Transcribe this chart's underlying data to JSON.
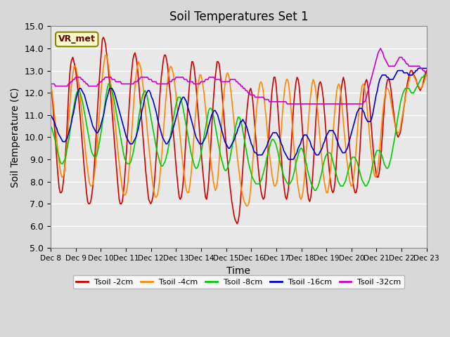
{
  "title": "Soil Temperatures Set 1",
  "xlabel": "Time",
  "ylabel": "Soil Temperature (C)",
  "ylim": [
    5.0,
    15.0
  ],
  "yticks": [
    5.0,
    6.0,
    7.0,
    8.0,
    9.0,
    10.0,
    11.0,
    12.0,
    13.0,
    14.0,
    15.0
  ],
  "x_labels": [
    "Dec 8",
    "Dec 9",
    "Dec 10",
    "Dec 11",
    "Dec 12",
    "Dec 13",
    "Dec 14",
    "Dec 15",
    "Dec 16",
    "Dec 17",
    "Dec 18",
    "Dec 19",
    "Dec 20",
    "Dec 21",
    "Dec 22",
    "Dec 23"
  ],
  "series_colors": [
    "#cc0000",
    "#ff8800",
    "#00cc00",
    "#0000cc",
    "#cc00cc"
  ],
  "series_labels": [
    "Tsoil -2cm",
    "Tsoil -4cm",
    "Tsoil -8cm",
    "Tsoil -16cm",
    "Tsoil -32cm"
  ],
  "plot_background": "#e8e8e8",
  "grid_color": "#ffffff",
  "t2cm": [
    12.4,
    12.0,
    11.5,
    10.8,
    10.2,
    9.5,
    8.8,
    8.2,
    7.7,
    7.5,
    7.5,
    7.6,
    8.0,
    8.5,
    9.2,
    10.0,
    11.0,
    12.0,
    12.8,
    13.3,
    13.5,
    13.6,
    13.4,
    13.2,
    12.9,
    12.5,
    12.0,
    11.5,
    10.9,
    10.3,
    9.7,
    9.1,
    8.5,
    8.0,
    7.5,
    7.1,
    7.0,
    7.0,
    7.1,
    7.4,
    7.8,
    8.4,
    9.2,
    10.0,
    10.9,
    11.7,
    12.5,
    13.2,
    13.8,
    14.4,
    14.5,
    14.4,
    14.2,
    13.8,
    13.4,
    12.9,
    12.4,
    11.9,
    11.3,
    10.7,
    10.1,
    9.5,
    8.9,
    8.3,
    7.7,
    7.2,
    7.0,
    7.0,
    7.1,
    7.5,
    8.0,
    8.7,
    9.4,
    10.2,
    11.0,
    11.8,
    12.5,
    13.0,
    13.5,
    13.7,
    13.8,
    13.6,
    13.3,
    12.8,
    12.2,
    11.6,
    11.0,
    10.4,
    9.8,
    9.2,
    8.6,
    8.1,
    7.6,
    7.2,
    7.1,
    7.0,
    7.1,
    7.3,
    7.7,
    8.3,
    9.0,
    9.8,
    10.6,
    11.4,
    12.1,
    12.7,
    13.1,
    13.5,
    13.7,
    13.7,
    13.5,
    13.2,
    12.7,
    12.2,
    11.7,
    11.1,
    10.5,
    9.9,
    9.3,
    8.7,
    8.2,
    7.7,
    7.3,
    7.2,
    7.3,
    7.6,
    8.1,
    8.8,
    9.6,
    10.4,
    11.2,
    11.9,
    12.5,
    13.0,
    13.4,
    13.4,
    13.2,
    12.8,
    12.3,
    11.7,
    11.1,
    10.5,
    9.9,
    9.3,
    8.7,
    8.2,
    7.7,
    7.3,
    7.2,
    7.5,
    8.0,
    8.8,
    9.6,
    10.5,
    11.3,
    12.0,
    12.6,
    13.0,
    13.4,
    13.4,
    13.3,
    12.9,
    12.4,
    11.8,
    11.2,
    10.6,
    10.0,
    9.4,
    8.9,
    8.4,
    7.9,
    7.5,
    7.1,
    6.8,
    6.5,
    6.3,
    6.2,
    6.1,
    6.2,
    6.5,
    7.0,
    7.6,
    8.3,
    9.0,
    9.7,
    10.4,
    11.0,
    11.5,
    11.9,
    12.1,
    12.2,
    12.0,
    11.6,
    11.0,
    10.4,
    9.8,
    9.2,
    8.7,
    8.2,
    7.8,
    7.5,
    7.3,
    7.2,
    7.3,
    7.7,
    8.3,
    9.1,
    9.9,
    10.7,
    11.4,
    12.0,
    12.4,
    12.7,
    12.7,
    12.4,
    11.8,
    11.1,
    10.4,
    9.7,
    9.1,
    8.5,
    8.0,
    7.6,
    7.3,
    7.2,
    7.4,
    7.8,
    8.5,
    9.3,
    10.1,
    10.9,
    11.6,
    12.1,
    12.5,
    12.7,
    12.6,
    12.3,
    11.7,
    11.1,
    10.4,
    9.7,
    9.1,
    8.5,
    8.0,
    7.5,
    7.2,
    7.1,
    7.3,
    7.7,
    8.4,
    9.2,
    10.1,
    10.9,
    11.6,
    12.1,
    12.4,
    12.5,
    12.4,
    12.1,
    11.7,
    11.1,
    10.5,
    9.9,
    9.3,
    8.8,
    8.3,
    7.9,
    7.6,
    7.5,
    7.6,
    8.0,
    8.6,
    9.4,
    10.2,
    11.0,
    11.7,
    12.2,
    12.5,
    12.7,
    12.5,
    12.1,
    11.5,
    10.8,
    10.1,
    9.5,
    8.9,
    8.4,
    8.0,
    7.7,
    7.5,
    7.5,
    7.7,
    8.2,
    8.9,
    9.7,
    10.6,
    11.3,
    11.9,
    12.3,
    12.5,
    12.6,
    12.4,
    12.0,
    11.4,
    10.8,
    10.2,
    9.6,
    9.1,
    8.7,
    8.4,
    8.2,
    8.2,
    8.4,
    8.8,
    9.4,
    10.1,
    10.8,
    11.5,
    12.0,
    12.4,
    12.6,
    12.6,
    12.5,
    12.2,
    11.8,
    11.4,
    11.0,
    10.6,
    10.3,
    10.1,
    10.0,
    10.1,
    10.2,
    10.5,
    10.8,
    11.2,
    11.5,
    11.9,
    12.2,
    12.5,
    12.7,
    12.9,
    13.0,
    13.0,
    12.9,
    12.8,
    12.7,
    12.6,
    12.4,
    12.3,
    12.2,
    12.1,
    12.2,
    12.3,
    12.5,
    12.7,
    12.9,
    13.0
  ],
  "t4cm": [
    12.4,
    12.1,
    11.7,
    11.2,
    10.7,
    10.1,
    9.6,
    9.1,
    8.7,
    8.4,
    8.2,
    8.2,
    8.4,
    8.8,
    9.3,
    9.9,
    10.6,
    11.3,
    12.0,
    12.5,
    12.9,
    13.2,
    13.2,
    13.1,
    12.8,
    12.5,
    12.1,
    11.6,
    11.1,
    10.6,
    10.0,
    9.5,
    9.0,
    8.6,
    8.2,
    7.9,
    7.8,
    7.8,
    7.9,
    8.2,
    8.6,
    9.2,
    9.8,
    10.5,
    11.2,
    11.9,
    12.5,
    13.0,
    13.4,
    13.7,
    13.7,
    13.5,
    13.2,
    12.8,
    12.4,
    12.0,
    11.5,
    11.1,
    10.6,
    10.1,
    9.6,
    9.1,
    8.6,
    8.2,
    7.8,
    7.5,
    7.4,
    7.4,
    7.5,
    7.8,
    8.3,
    8.9,
    9.6,
    10.3,
    11.1,
    11.8,
    12.4,
    12.9,
    13.2,
    13.4,
    13.3,
    13.1,
    12.7,
    12.3,
    11.8,
    11.3,
    10.8,
    10.2,
    9.7,
    9.2,
    8.7,
    8.2,
    7.8,
    7.5,
    7.3,
    7.3,
    7.4,
    7.7,
    8.1,
    8.7,
    9.3,
    10.0,
    10.7,
    11.4,
    12.0,
    12.5,
    12.9,
    13.1,
    13.2,
    13.1,
    12.9,
    12.6,
    12.2,
    11.7,
    11.2,
    10.7,
    10.2,
    9.7,
    9.2,
    8.7,
    8.3,
    7.9,
    7.6,
    7.5,
    7.5,
    7.8,
    8.2,
    8.8,
    9.5,
    10.2,
    10.9,
    11.5,
    12.1,
    12.5,
    12.8,
    12.8,
    12.6,
    12.3,
    11.9,
    11.4,
    10.9,
    10.4,
    9.9,
    9.4,
    8.9,
    8.5,
    8.1,
    7.8,
    7.6,
    7.7,
    8.0,
    8.6,
    9.3,
    10.1,
    10.8,
    11.5,
    12.1,
    12.5,
    12.8,
    12.9,
    12.8,
    12.5,
    12.1,
    11.6,
    11.1,
    10.6,
    10.0,
    9.5,
    9.0,
    8.6,
    8.2,
    7.8,
    7.5,
    7.3,
    7.1,
    7.0,
    6.9,
    6.9,
    7.0,
    7.3,
    7.8,
    8.4,
    9.1,
    9.8,
    10.5,
    11.2,
    11.7,
    12.1,
    12.4,
    12.5,
    12.4,
    12.1,
    11.7,
    11.2,
    10.7,
    10.1,
    9.6,
    9.1,
    8.7,
    8.3,
    8.0,
    7.8,
    7.8,
    7.9,
    8.2,
    8.7,
    9.4,
    10.1,
    10.8,
    11.5,
    12.0,
    12.4,
    12.6,
    12.6,
    12.4,
    11.9,
    11.3,
    10.7,
    10.0,
    9.4,
    8.9,
    8.4,
    7.9,
    7.6,
    7.3,
    7.2,
    7.3,
    7.6,
    8.1,
    8.8,
    9.5,
    10.2,
    10.9,
    11.5,
    12.0,
    12.4,
    12.6,
    12.5,
    12.2,
    11.8,
    11.2,
    10.6,
    10.0,
    9.4,
    8.9,
    8.4,
    8.0,
    7.7,
    7.5,
    7.5,
    7.8,
    8.2,
    8.8,
    9.5,
    10.2,
    10.9,
    11.5,
    12.0,
    12.3,
    12.4,
    12.3,
    11.9,
    11.4,
    10.8,
    10.2,
    9.7,
    9.1,
    8.7,
    8.3,
    8.0,
    7.8,
    7.8,
    8.0,
    8.4,
    9.0,
    9.7,
    10.4,
    11.1,
    11.6,
    12.0,
    12.3,
    12.4,
    12.3,
    12.0,
    11.6,
    11.0,
    10.5,
    9.9,
    9.4,
    9.0,
    8.6,
    8.3,
    8.2,
    8.3,
    8.5,
    9.0,
    9.5,
    10.2,
    10.8,
    11.3,
    11.7,
    12.0,
    12.2,
    12.2,
    12.1,
    11.9,
    11.6,
    11.3,
    11.0,
    10.7,
    10.5,
    10.3,
    10.2,
    10.2,
    10.3,
    10.6,
    10.9,
    11.2,
    11.5,
    11.8,
    12.1,
    12.3,
    12.5,
    12.7,
    12.8,
    12.8,
    12.8,
    12.7,
    12.6,
    12.5,
    12.4,
    12.3,
    12.2,
    12.2,
    12.3,
    12.4,
    12.5,
    12.7,
    12.8
  ],
  "t8cm": [
    10.5,
    10.4,
    10.2,
    10.0,
    9.8,
    9.5,
    9.3,
    9.1,
    8.9,
    8.8,
    8.8,
    8.9,
    9.0,
    9.2,
    9.5,
    9.8,
    10.1,
    10.5,
    10.9,
    11.2,
    11.5,
    11.8,
    12.0,
    12.1,
    12.1,
    12.0,
    11.8,
    11.6,
    11.3,
    11.0,
    10.7,
    10.4,
    10.1,
    9.8,
    9.5,
    9.3,
    9.2,
    9.1,
    9.1,
    9.2,
    9.4,
    9.7,
    10.0,
    10.3,
    10.7,
    11.1,
    11.5,
    11.9,
    12.2,
    12.4,
    12.4,
    12.3,
    12.1,
    11.9,
    11.6,
    11.3,
    11.0,
    10.7,
    10.4,
    10.1,
    9.8,
    9.5,
    9.2,
    9.0,
    8.9,
    8.8,
    8.8,
    8.8,
    8.9,
    9.1,
    9.3,
    9.6,
    9.9,
    10.2,
    10.6,
    11.0,
    11.3,
    11.6,
    11.9,
    12.0,
    12.1,
    12.0,
    11.8,
    11.5,
    11.2,
    10.9,
    10.6,
    10.3,
    10.0,
    9.7,
    9.4,
    9.2,
    9.0,
    8.8,
    8.7,
    8.7,
    8.8,
    8.9,
    9.1,
    9.3,
    9.6,
    9.9,
    10.2,
    10.5,
    10.8,
    11.1,
    11.4,
    11.6,
    11.8,
    11.8,
    11.8,
    11.6,
    11.4,
    11.1,
    10.8,
    10.5,
    10.2,
    9.9,
    9.6,
    9.3,
    9.1,
    8.9,
    8.7,
    8.6,
    8.6,
    8.7,
    8.9,
    9.1,
    9.4,
    9.7,
    10.0,
    10.3,
    10.6,
    10.9,
    11.2,
    11.3,
    11.3,
    11.2,
    11.0,
    10.7,
    10.4,
    10.1,
    9.8,
    9.5,
    9.2,
    9.0,
    8.8,
    8.6,
    8.5,
    8.5,
    8.6,
    8.8,
    9.0,
    9.3,
    9.6,
    9.9,
    10.2,
    10.5,
    10.7,
    10.9,
    10.9,
    10.8,
    10.6,
    10.3,
    10.0,
    9.7,
    9.4,
    9.1,
    8.8,
    8.6,
    8.4,
    8.2,
    8.1,
    8.0,
    7.9,
    7.9,
    7.9,
    7.9,
    8.0,
    8.1,
    8.3,
    8.5,
    8.7,
    9.0,
    9.2,
    9.4,
    9.6,
    9.8,
    9.9,
    9.9,
    9.8,
    9.7,
    9.5,
    9.3,
    9.0,
    8.8,
    8.6,
    8.4,
    8.2,
    8.1,
    8.0,
    7.9,
    7.9,
    7.9,
    8.0,
    8.1,
    8.3,
    8.5,
    8.8,
    9.0,
    9.2,
    9.4,
    9.5,
    9.5,
    9.4,
    9.2,
    9.0,
    8.8,
    8.5,
    8.3,
    8.1,
    7.9,
    7.8,
    7.7,
    7.6,
    7.6,
    7.7,
    7.8,
    8.0,
    8.2,
    8.4,
    8.7,
    8.9,
    9.1,
    9.2,
    9.3,
    9.3,
    9.3,
    9.2,
    9.0,
    8.8,
    8.6,
    8.4,
    8.2,
    8.0,
    7.9,
    7.8,
    7.8,
    7.8,
    7.9,
    8.0,
    8.2,
    8.4,
    8.6,
    8.8,
    9.0,
    9.1,
    9.1,
    9.1,
    9.0,
    8.9,
    8.7,
    8.5,
    8.3,
    8.1,
    8.0,
    7.9,
    7.8,
    7.8,
    7.9,
    8.0,
    8.2,
    8.4,
    8.7,
    8.9,
    9.1,
    9.3,
    9.4,
    9.4,
    9.4,
    9.3,
    9.2,
    9.0,
    8.8,
    8.7,
    8.6,
    8.6,
    8.7,
    8.9,
    9.1,
    9.4,
    9.7,
    10.0,
    10.3,
    10.7,
    11.0,
    11.3,
    11.6,
    11.8,
    12.0,
    12.1,
    12.2,
    12.2,
    12.2,
    12.2,
    12.1,
    12.0,
    12.0,
    12.0,
    12.1,
    12.2,
    12.3,
    12.4,
    12.5,
    12.6,
    12.7,
    12.7,
    12.8,
    12.8,
    12.9
  ],
  "t16cm": [
    11.0,
    10.9,
    10.8,
    10.7,
    10.5,
    10.4,
    10.2,
    10.1,
    10.0,
    9.9,
    9.8,
    9.8,
    9.8,
    9.9,
    10.0,
    10.2,
    10.4,
    10.6,
    10.9,
    11.1,
    11.4,
    11.7,
    11.9,
    12.1,
    12.2,
    12.2,
    12.1,
    12.0,
    11.9,
    11.7,
    11.5,
    11.3,
    11.1,
    10.9,
    10.7,
    10.5,
    10.4,
    10.3,
    10.2,
    10.2,
    10.3,
    10.4,
    10.6,
    10.8,
    11.0,
    11.3,
    11.6,
    11.8,
    12.0,
    12.2,
    12.2,
    12.2,
    12.1,
    12.0,
    11.8,
    11.6,
    11.4,
    11.2,
    11.0,
    10.8,
    10.6,
    10.4,
    10.2,
    10.0,
    9.9,
    9.8,
    9.7,
    9.7,
    9.7,
    9.8,
    9.9,
    10.0,
    10.2,
    10.4,
    10.7,
    10.9,
    11.2,
    11.4,
    11.7,
    11.9,
    12.0,
    12.1,
    12.1,
    12.0,
    11.8,
    11.7,
    11.5,
    11.3,
    11.1,
    10.8,
    10.6,
    10.4,
    10.2,
    10.0,
    9.9,
    9.8,
    9.7,
    9.7,
    9.8,
    9.9,
    10.0,
    10.2,
    10.4,
    10.6,
    10.8,
    11.0,
    11.2,
    11.4,
    11.6,
    11.7,
    11.8,
    11.8,
    11.7,
    11.6,
    11.4,
    11.2,
    11.0,
    10.8,
    10.6,
    10.4,
    10.2,
    10.0,
    9.9,
    9.8,
    9.7,
    9.7,
    9.7,
    9.8,
    9.9,
    10.0,
    10.2,
    10.4,
    10.6,
    10.8,
    11.0,
    11.1,
    11.2,
    11.2,
    11.1,
    11.0,
    10.8,
    10.6,
    10.4,
    10.2,
    10.0,
    9.8,
    9.7,
    9.6,
    9.5,
    9.5,
    9.6,
    9.7,
    9.8,
    9.9,
    10.1,
    10.2,
    10.4,
    10.5,
    10.7,
    10.7,
    10.8,
    10.7,
    10.6,
    10.5,
    10.3,
    10.1,
    9.9,
    9.7,
    9.6,
    9.4,
    9.3,
    9.3,
    9.2,
    9.2,
    9.2,
    9.2,
    9.2,
    9.3,
    9.4,
    9.5,
    9.6,
    9.8,
    9.9,
    10.0,
    10.1,
    10.2,
    10.2,
    10.2,
    10.2,
    10.1,
    10.0,
    9.9,
    9.7,
    9.6,
    9.4,
    9.3,
    9.2,
    9.1,
    9.0,
    9.0,
    9.0,
    9.0,
    9.0,
    9.1,
    9.2,
    9.3,
    9.5,
    9.6,
    9.7,
    9.9,
    10.0,
    10.1,
    10.1,
    10.1,
    10.0,
    9.9,
    9.8,
    9.6,
    9.5,
    9.4,
    9.3,
    9.2,
    9.2,
    9.2,
    9.3,
    9.4,
    9.5,
    9.7,
    9.8,
    10.0,
    10.1,
    10.2,
    10.3,
    10.3,
    10.3,
    10.3,
    10.2,
    10.1,
    9.9,
    9.8,
    9.6,
    9.5,
    9.4,
    9.3,
    9.3,
    9.3,
    9.4,
    9.5,
    9.7,
    9.9,
    10.1,
    10.3,
    10.5,
    10.7,
    10.9,
    11.1,
    11.2,
    11.3,
    11.3,
    11.3,
    11.2,
    11.1,
    10.9,
    10.8,
    10.7,
    10.7,
    10.7,
    10.8,
    11.0,
    11.3,
    11.6,
    11.9,
    12.1,
    12.4,
    12.6,
    12.7,
    12.8,
    12.8,
    12.8,
    12.8,
    12.7,
    12.7,
    12.6,
    12.6,
    12.6,
    12.6,
    12.7,
    12.8,
    12.9,
    13.0,
    13.0,
    13.0,
    13.0,
    13.0,
    12.9,
    12.9,
    12.9,
    12.9,
    12.8,
    12.8,
    12.8,
    12.8,
    12.9,
    12.9,
    13.0,
    13.0,
    13.1,
    13.1,
    13.1,
    13.1,
    13.1,
    13.1,
    13.1,
    13.1
  ],
  "t32cm": [
    12.4,
    12.4,
    12.4,
    12.4,
    12.3,
    12.3,
    12.3,
    12.3,
    12.3,
    12.3,
    12.3,
    12.3,
    12.3,
    12.3,
    12.3,
    12.4,
    12.4,
    12.5,
    12.5,
    12.6,
    12.6,
    12.7,
    12.7,
    12.7,
    12.7,
    12.7,
    12.6,
    12.6,
    12.5,
    12.5,
    12.4,
    12.4,
    12.3,
    12.3,
    12.3,
    12.3,
    12.3,
    12.3,
    12.3,
    12.3,
    12.4,
    12.4,
    12.5,
    12.5,
    12.6,
    12.6,
    12.7,
    12.7,
    12.7,
    12.7,
    12.7,
    12.7,
    12.6,
    12.6,
    12.6,
    12.5,
    12.5,
    12.5,
    12.5,
    12.5,
    12.4,
    12.4,
    12.4,
    12.4,
    12.4,
    12.4,
    12.4,
    12.4,
    12.4,
    12.4,
    12.4,
    12.5,
    12.5,
    12.5,
    12.6,
    12.6,
    12.7,
    12.7,
    12.7,
    12.7,
    12.7,
    12.7,
    12.7,
    12.6,
    12.6,
    12.6,
    12.5,
    12.5,
    12.5,
    12.5,
    12.4,
    12.4,
    12.4,
    12.4,
    12.4,
    12.4,
    12.4,
    12.4,
    12.4,
    12.4,
    12.5,
    12.5,
    12.5,
    12.6,
    12.6,
    12.6,
    12.7,
    12.7,
    12.7,
    12.7,
    12.7,
    12.7,
    12.7,
    12.6,
    12.6,
    12.6,
    12.5,
    12.5,
    12.5,
    12.5,
    12.5,
    12.4,
    12.4,
    12.4,
    12.4,
    12.4,
    12.4,
    12.5,
    12.5,
    12.5,
    12.5,
    12.6,
    12.6,
    12.6,
    12.7,
    12.7,
    12.7,
    12.7,
    12.7,
    12.6,
    12.6,
    12.6,
    12.6,
    12.6,
    12.5,
    12.5,
    12.5,
    12.5,
    12.5,
    12.5,
    12.5,
    12.5,
    12.6,
    12.6,
    12.6,
    12.6,
    12.6,
    12.5,
    12.5,
    12.4,
    12.4,
    12.3,
    12.3,
    12.2,
    12.2,
    12.1,
    12.1,
    12.0,
    12.0,
    11.9,
    11.9,
    11.9,
    11.9,
    11.8,
    11.8,
    11.8,
    11.8,
    11.8,
    11.8,
    11.8,
    11.8,
    11.7,
    11.7,
    11.7,
    11.7,
    11.6,
    11.6,
    11.6,
    11.6,
    11.6,
    11.6,
    11.6,
    11.6,
    11.6,
    11.6,
    11.6,
    11.6,
    11.6,
    11.6,
    11.6,
    11.5,
    11.5,
    11.5,
    11.5,
    11.5,
    11.5,
    11.5,
    11.5,
    11.5,
    11.5,
    11.5,
    11.5,
    11.5,
    11.5,
    11.5,
    11.5,
    11.5,
    11.5,
    11.5,
    11.5,
    11.5,
    11.5,
    11.5,
    11.5,
    11.5,
    11.5,
    11.5,
    11.5,
    11.5,
    11.5,
    11.5,
    11.5,
    11.5,
    11.5,
    11.5,
    11.5,
    11.5,
    11.5,
    11.5,
    11.5,
    11.5,
    11.5,
    11.5,
    11.5,
    11.5,
    11.5,
    11.5,
    11.5,
    11.5,
    11.5,
    11.5,
    11.5,
    11.5,
    11.5,
    11.5,
    11.5,
    11.5,
    11.5,
    11.5,
    11.5,
    11.5,
    11.5,
    11.5,
    11.5,
    11.5,
    11.6,
    11.6,
    11.8,
    12.0,
    12.2,
    12.4,
    12.6,
    12.8,
    13.0,
    13.2,
    13.4,
    13.6,
    13.8,
    13.9,
    14.0,
    13.9,
    13.8,
    13.6,
    13.5,
    13.4,
    13.3,
    13.2,
    13.2,
    13.2,
    13.2,
    13.2,
    13.2,
    13.3,
    13.4,
    13.5,
    13.6,
    13.6,
    13.6,
    13.5,
    13.5,
    13.4,
    13.3,
    13.3,
    13.2,
    13.2,
    13.2,
    13.2,
    13.2,
    13.2,
    13.2,
    13.2,
    13.2,
    13.2,
    13.1,
    13.1,
    13.0,
    13.0,
    12.9,
    12.9
  ]
}
